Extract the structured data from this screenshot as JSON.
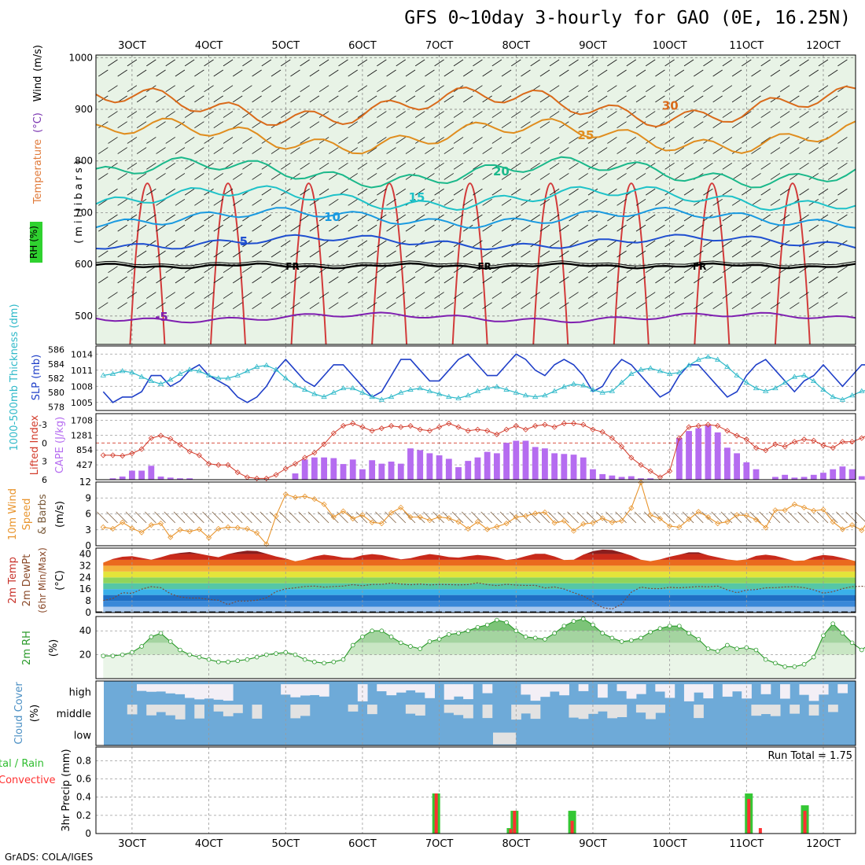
{
  "title": "GFS 0~10day 3-hourly for GAO (0E, 16.25N)",
  "footer": "GrADS: COLA/IGES",
  "x_axis": {
    "labels": [
      "3OCT",
      "4OCT",
      "5OCT",
      "6OCT",
      "7OCT",
      "8OCT",
      "9OCT",
      "10OCT",
      "11OCT",
      "12OCT"
    ],
    "range_days": [
      2.53,
      12.42
    ]
  },
  "chart_data": [
    {
      "panel": "upper-air",
      "type": "heatmap",
      "ylabel_parts": [
        {
          "text": "RH (%)",
          "color": "#2aa52a"
        },
        {
          "text": "Temperature",
          "color": "#e07a3a"
        },
        {
          "text": "(°C)",
          "color": "#7a35b0"
        },
        {
          "text": "Wind",
          "color": "#000000"
        },
        {
          "text": "(m/s)",
          "color": "#000000"
        }
      ],
      "ylabel_right": "(millibars)",
      "y_ticks": [
        500,
        600,
        700,
        800,
        900,
        1000
      ],
      "ylim": [
        1005,
        445
      ],
      "freezing_label": "FR",
      "freezing_level_mb": 597,
      "isotherm_labels": [
        {
          "value": "-5",
          "mb": 497
        },
        {
          "value": "5",
          "mb": 643
        },
        {
          "value": "10",
          "mb": 690
        },
        {
          "value": "15",
          "mb": 728
        },
        {
          "value": "20",
          "mb": 778
        },
        {
          "value": "25",
          "mb": 848
        },
        {
          "value": "30",
          "mb": 905
        }
      ]
    },
    {
      "panel": "thickness-slp",
      "type": "line",
      "ylabel_left": "1000-500mb Thickness (dm)",
      "ylabel_right": "SLP (mb)",
      "left_ticks": [
        "586",
        "584",
        "582",
        "580",
        "578"
      ],
      "right_ticks": [
        "1014",
        "1011",
        "1008",
        "1005"
      ],
      "series": [
        {
          "name": "SLP (mb)",
          "color": "#1f3fc8",
          "values": [
            1007,
            1005,
            1006,
            1006,
            1007,
            1010,
            1010,
            1008,
            1009,
            1011,
            1012,
            1010,
            1009,
            1008,
            1006,
            1005,
            1006,
            1008,
            1011,
            1013,
            1011,
            1009,
            1008,
            1010,
            1012,
            1012,
            1010,
            1008,
            1006,
            1007,
            1010,
            1013,
            1013,
            1011,
            1009,
            1009,
            1011,
            1013,
            1014,
            1012,
            1010,
            1010,
            1012,
            1014,
            1013,
            1011,
            1010,
            1012,
            1013,
            1012,
            1010,
            1007,
            1008,
            1011,
            1013,
            1012,
            1010,
            1008,
            1006,
            1007,
            1010,
            1012,
            1012,
            1010,
            1008,
            1006,
            1007,
            1010,
            1012,
            1013,
            1011,
            1009,
            1007,
            1009,
            1010,
            1012,
            1010,
            1008,
            1010,
            1012,
            1012,
            1010
          ]
        },
        {
          "name": "Thickness (dm)",
          "color": "#2fb9c9",
          "values": [
            582.4,
            582.6,
            583.0,
            582.8,
            582.2,
            581.6,
            581.2,
            581.8,
            582.6,
            583.2,
            583.0,
            582.4,
            582.0,
            582.0,
            582.4,
            583.0,
            583.6,
            583.8,
            583.2,
            582.0,
            581.0,
            580.4,
            579.8,
            579.4,
            580.0,
            580.6,
            580.6,
            580.0,
            579.4,
            579.0,
            579.4,
            580.0,
            580.4,
            580.6,
            580.2,
            579.8,
            579.4,
            579.2,
            579.6,
            580.2,
            580.6,
            580.8,
            580.4,
            580.0,
            579.6,
            579.4,
            579.6,
            580.2,
            580.8,
            581.2,
            581.0,
            580.4,
            580.0,
            580.2,
            581.4,
            582.6,
            583.2,
            583.4,
            583.0,
            582.6,
            582.8,
            583.8,
            584.6,
            585.0,
            584.6,
            583.6,
            582.4,
            581.4,
            580.6,
            580.2,
            580.6,
            581.4,
            582.2,
            582.4,
            581.6,
            580.4,
            579.4,
            579.0,
            579.6,
            580.2,
            580.4,
            579.8
          ]
        }
      ]
    },
    {
      "panel": "lifted-cape",
      "type": "bar",
      "ylabel_left": "Lifted Index",
      "ylabel_right": "CAPE (J/kg)",
      "left_ticks": [
        "-3",
        "0",
        "3",
        "6"
      ],
      "right_ticks": [
        "1708",
        "1281",
        "854",
        "427"
      ],
      "series": [
        {
          "name": "Lifted Index",
          "color": "#d23a2a",
          "values": [
            2.0,
            2.0,
            2.1,
            1.7,
            1.0,
            -0.8,
            -1.2,
            -0.7,
            0.3,
            1.4,
            2.0,
            3.4,
            3.6,
            3.6,
            4.8,
            5.6,
            5.8,
            5.8,
            5.2,
            4.2,
            3.4,
            2.4,
            1.6,
            0.2,
            -1.6,
            -2.8,
            -3.2,
            -2.6,
            -2.0,
            -2.4,
            -2.8,
            -2.6,
            -2.8,
            -2.2,
            -2.0,
            -2.6,
            -3.2,
            -2.6,
            -2.0,
            -2.2,
            -2.0,
            -1.4,
            -2.2,
            -2.8,
            -2.2,
            -2.8,
            -3.0,
            -2.6,
            -3.2,
            -3.2,
            -3.0,
            -2.2,
            -1.8,
            -0.8,
            0.6,
            2.4,
            3.6,
            4.6,
            5.6,
            4.6,
            -0.8,
            -2.6,
            -2.8,
            -3.0,
            -2.8,
            -2.0,
            -1.2,
            -0.6,
            0.8,
            1.2,
            0.2,
            0.6,
            -0.2,
            -0.6,
            -0.4,
            0.4,
            0.8,
            -0.2,
            -0.2,
            -0.8,
            -1.6,
            -2.6
          ]
        },
        {
          "name": "CAPE (J/kg)",
          "color": "#b56cf0",
          "values": [
            0,
            40,
            90,
            260,
            260,
            400,
            90,
            60,
            40,
            40,
            0,
            0,
            0,
            0,
            0,
            0,
            0,
            0,
            0,
            0,
            180,
            580,
            640,
            640,
            620,
            450,
            580,
            300,
            560,
            460,
            520,
            460,
            900,
            850,
            760,
            700,
            600,
            360,
            540,
            640,
            800,
            760,
            1060,
            1120,
            1120,
            940,
            900,
            760,
            740,
            720,
            640,
            300,
            160,
            120,
            80,
            100,
            40,
            40,
            0,
            0,
            1200,
            1400,
            1480,
            1560,
            1360,
            920,
            760,
            500,
            300,
            0,
            80,
            140,
            60,
            80,
            140,
            200,
            300,
            380,
            300,
            100,
            80,
            0
          ]
        }
      ]
    },
    {
      "panel": "wind-10m",
      "type": "line",
      "ylabel": "10m Wind Speed (m/s) & Barbs",
      "ylim": [
        0,
        12
      ],
      "y_ticks": [
        "0",
        "3",
        "6",
        "9",
        "12"
      ],
      "series": [
        {
          "name": "10m Wind Speed",
          "color": "#e8952e",
          "values": [
            3.5,
            3.2,
            4.4,
            3.3,
            2.5,
            3.9,
            4.2,
            1.6,
            3.0,
            2.7,
            3.1,
            1.5,
            3.2,
            3.5,
            3.4,
            3.2,
            2.4,
            0.3,
            5.6,
            9.7,
            9.1,
            9.3,
            8.8,
            7.8,
            5.4,
            6.5,
            5.1,
            5.8,
            4.4,
            4.2,
            6.2,
            7.2,
            5.4,
            5.4,
            4.8,
            5.4,
            5.2,
            4.5,
            3.2,
            4.5,
            3.1,
            3.6,
            4.2,
            5.4,
            5.6,
            6.1,
            6.3,
            4.3,
            4.7,
            2.8,
            4.1,
            4.3,
            5.2,
            4.4,
            4.7,
            7.1,
            11.9,
            5.8,
            5.1,
            3.7,
            3.5,
            5.0,
            6.4,
            5.4,
            4.2,
            4.5,
            5.8,
            5.7,
            4.9,
            3.4,
            6.7,
            6.7,
            7.8,
            7.2,
            6.6,
            6.8,
            4.5,
            3.1,
            3.9,
            2.9,
            5.5,
            5.0
          ]
        }
      ]
    },
    {
      "panel": "temp-2m",
      "type": "area",
      "ylabel": "2m Temp 2m DewPt (6hr Min/Max) (°C)",
      "ylim": [
        0,
        44
      ],
      "y_ticks": [
        "0",
        "8",
        "16",
        "24",
        "32",
        "40"
      ],
      "series": [
        {
          "name": "2m Temp",
          "values": [
            34.1,
            36.6,
            38.1,
            38.5,
            37.3,
            36.1,
            37.8,
            39.7,
            40.7,
            41.3,
            40.2,
            38.9,
            37.8,
            39.9,
            41.3,
            42.3,
            42.0,
            40.2,
            38.3,
            36.9,
            35.0,
            36.3,
            38.3,
            39.5,
            38.7,
            37.5,
            37.3,
            39.1,
            39.9,
            39.2,
            37.7,
            36.4,
            37.1,
            38.7,
            39.9,
            39.1,
            37.9,
            37.5,
            38.5,
            39.3,
            38.7,
            37.7,
            35.9,
            36.7,
            38.5,
            40.1,
            40.1,
            38.3,
            35.9,
            36.1,
            39.5,
            41.9,
            43.0,
            42.7,
            41.0,
            38.9,
            36.1,
            35.1,
            36.3,
            38.1,
            39.5,
            41.1,
            41.1,
            39.1,
            37.7,
            36.3,
            35.5,
            36.3,
            38.7,
            39.5,
            38.7,
            37.0,
            35.3,
            35.5,
            38.0,
            39.3,
            38.7,
            37.3,
            35.7,
            33.9,
            32.1,
            31.3
          ]
        },
        {
          "name": "2m DewPt",
          "values": [
            8.2,
            9.6,
            13.6,
            13.1,
            16.0,
            17.7,
            17.0,
            12.9,
            10.7,
            9.9,
            9.9,
            9.0,
            8.4,
            5.4,
            7.9,
            7.9,
            8.4,
            10.1,
            14.3,
            16.2,
            16.9,
            17.8,
            18.1,
            17.4,
            17.8,
            18.1,
            19.1,
            18.3,
            19.2,
            19.2,
            20.1,
            19.5,
            19.0,
            19.5,
            18.9,
            19.2,
            19.1,
            18.9,
            19.1,
            20.3,
            19.1,
            18.4,
            19.3,
            18.8,
            18.5,
            18.6,
            16.8,
            17.5,
            16.1,
            13.6,
            11.4,
            7.5,
            3.4,
            2.4,
            5.8,
            13.9,
            17.4,
            16.4,
            16.3,
            17.2,
            16.9,
            17.3,
            17.8,
            17.6,
            18.1,
            15.5,
            13.5,
            15.4,
            15.7,
            16.9,
            17.0,
            17.5,
            17.7,
            17.0,
            15.5,
            13.2,
            14.3,
            16.3,
            17.7,
            18.0,
            17.4,
            17.8
          ]
        }
      ]
    },
    {
      "panel": "rh-2m",
      "type": "area",
      "ylabel": "2m RH (%)",
      "ylim": [
        0,
        52
      ],
      "y_ticks": [
        "20",
        "40"
      ],
      "series": [
        {
          "name": "2m RH",
          "color": "#2a9a2a",
          "values": [
            19,
            19,
            20,
            22,
            27,
            35,
            38,
            31,
            24,
            20,
            18,
            16,
            14,
            14,
            15,
            16,
            18,
            20,
            21,
            22,
            20,
            16,
            14,
            13,
            14,
            16,
            28,
            35,
            40,
            40,
            35,
            30,
            27,
            25,
            31,
            33,
            37,
            38,
            40,
            43,
            45,
            49,
            47,
            40,
            35,
            34,
            33,
            38,
            44,
            48,
            50,
            45,
            38,
            34,
            31,
            32,
            34,
            39,
            42,
            44,
            44,
            38,
            33,
            25,
            23,
            28,
            25,
            26,
            24,
            16,
            13,
            10,
            10,
            12,
            18,
            36,
            46,
            38,
            30,
            24,
            30,
            37,
            39,
            40,
            41
          ]
        }
      ]
    },
    {
      "panel": "cloud-cover",
      "type": "heatmap",
      "ylabel": "Cloud Cover (%)",
      "row_labels": [
        "high",
        "middle",
        "low"
      ]
    },
    {
      "panel": "precip",
      "type": "bar",
      "ylabel_left": "3hr Precip (mm)",
      "legend_left": [
        "tal / Rain",
        "Convective"
      ],
      "y_ticks": [
        "0",
        "0.2",
        "0.4",
        "0.6",
        "0.8"
      ],
      "ylim": [
        0,
        0.95
      ],
      "run_total": "Run Total = 1.75",
      "series": [
        {
          "name": "Total / Rain",
          "color": "#34c734",
          "events": [
            {
              "day": 6.96,
              "value": 0.44
            },
            {
              "day": 7.93,
              "value": 0.06
            },
            {
              "day": 7.98,
              "value": 0.25
            },
            {
              "day": 8.73,
              "value": 0.25
            },
            {
              "day": 11.03,
              "value": 0.44
            },
            {
              "day": 11.76,
              "value": 0.31
            }
          ]
        },
        {
          "name": "Convective",
          "color": "#ff3131",
          "events": [
            {
              "day": 6.96,
              "value": 0.44
            },
            {
              "day": 7.93,
              "value": 0.05
            },
            {
              "day": 7.98,
              "value": 0.25
            },
            {
              "day": 8.73,
              "value": 0.14
            },
            {
              "day": 11.03,
              "value": 0.38
            },
            {
              "day": 11.18,
              "value": 0.06
            },
            {
              "day": 11.76,
              "value": 0.25
            }
          ]
        }
      ]
    }
  ]
}
